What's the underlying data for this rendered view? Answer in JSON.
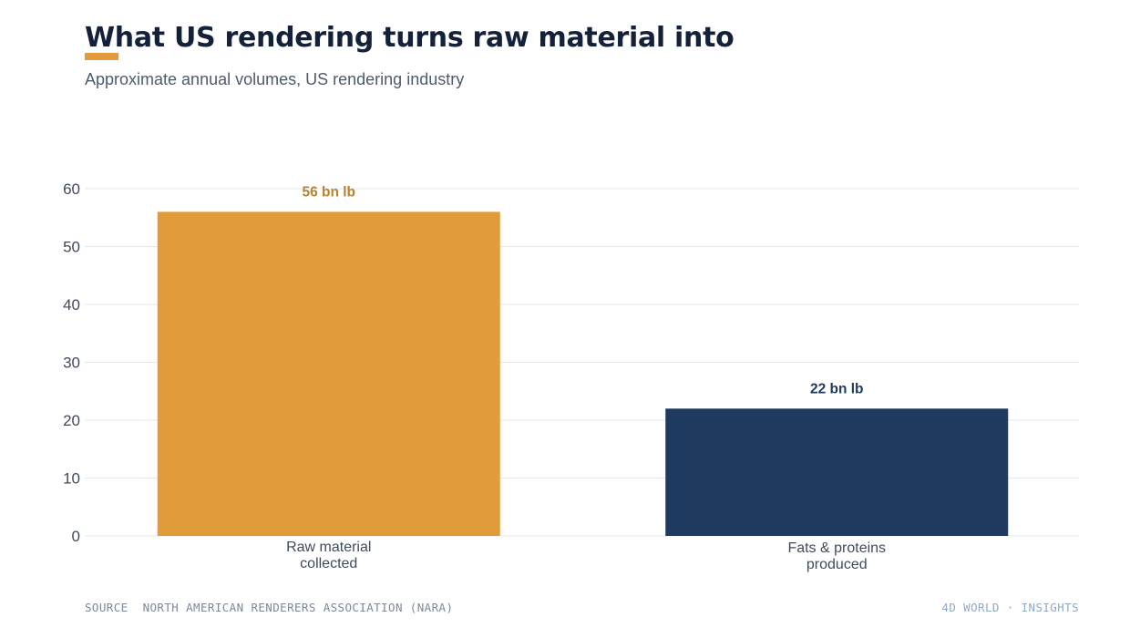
{
  "header": {
    "title": "What US rendering turns raw material into",
    "subtitle": "Approximate annual volumes, US rendering industry"
  },
  "chart_data": {
    "type": "bar",
    "categories": [
      "Raw material collected",
      "Fats & proteins produced"
    ],
    "category_lines": [
      [
        "Raw material",
        "collected"
      ],
      [
        "Fats & proteins",
        "produced"
      ]
    ],
    "values": [
      56,
      22
    ],
    "value_labels": [
      "56 bn lb",
      "22 bn lb"
    ],
    "colors": [
      "#e19b3a",
      "#1e3a5f"
    ],
    "label_colors": [
      "#b8812f",
      "#1e3a5f"
    ],
    "ylim": [
      0,
      60
    ],
    "yticks": [
      0,
      10,
      20,
      30,
      40,
      50,
      60
    ],
    "grid": true,
    "xlabel": "",
    "ylabel": ""
  },
  "footer": {
    "source_key": "SOURCE",
    "source_value": "NORTH AMERICAN RENDERERS ASSOCIATION (NARA)",
    "brand": "4D WORLD · INSIGHTS"
  }
}
